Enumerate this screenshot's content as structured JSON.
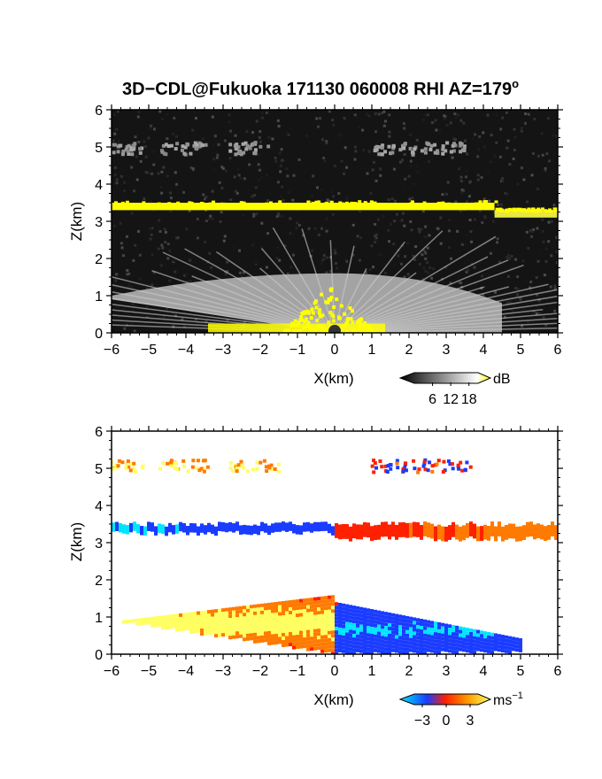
{
  "figure": {
    "title_main": "3D−CDL@Fukuoka 171130 060008 RHI AZ=179",
    "title_degree": "o"
  },
  "colors": {
    "reflectivity_high": "#ffff00",
    "velocity_min": "#00e5ff",
    "velocity_neg": "#1a3cff",
    "velocity_zero": "#ff2000",
    "velocity_pos": "#ffff60",
    "background_top": "#141414"
  },
  "chart_data": [
    {
      "type": "heatmap",
      "quantity": "reflectivity",
      "xlabel": "X(km)",
      "ylabel": "Z(km)",
      "xlim": [
        -6,
        6
      ],
      "ylim": [
        0,
        6
      ],
      "xticks": [
        "−6",
        "−5",
        "−4",
        "−3",
        "−2",
        "−1",
        "0",
        "1",
        "2",
        "3",
        "4",
        "5",
        "6"
      ],
      "yticks": [
        "0",
        "1",
        "2",
        "3",
        "4",
        "5",
        "6"
      ],
      "grid": false,
      "colorbar": {
        "unit": "dB",
        "ticks": [
          "6",
          "12",
          "18"
        ],
        "range": [
          0,
          21
        ]
      },
      "features": [
        {
          "kind": "layer",
          "x": [
            -6,
            4.3
          ],
          "z": [
            3.3,
            3.5
          ],
          "level": 20
        },
        {
          "kind": "layer",
          "x": [
            4.3,
            6
          ],
          "z": [
            3.1,
            3.3
          ],
          "level": 18
        },
        {
          "kind": "patches",
          "z": 5.0,
          "x": [
            -5.8,
            -4.1,
            -2.3,
            1.6,
            2.9
          ],
          "level": 9
        },
        {
          "kind": "fan",
          "origin": [
            0,
            0
          ],
          "x": [
            -6,
            4.5
          ],
          "zmax": 1.6,
          "level": 12
        },
        {
          "kind": "core",
          "x": [
            -1.5,
            1.1
          ],
          "zmax": 1.3,
          "level": 20
        }
      ]
    },
    {
      "type": "heatmap",
      "quantity": "radial velocity",
      "xlabel": "X(km)",
      "ylabel": "Z(km)",
      "xlim": [
        -6,
        6
      ],
      "ylim": [
        0,
        6
      ],
      "xticks": [
        "−6",
        "−5",
        "−4",
        "−3",
        "−2",
        "−1",
        "0",
        "1",
        "2",
        "3",
        "4",
        "5",
        "6"
      ],
      "yticks": [
        "0",
        "1",
        "2",
        "3",
        "4",
        "5",
        "6"
      ],
      "grid": false,
      "colorbar": {
        "unit": "ms",
        "unit_exponent": "−1",
        "ticks": [
          "−3",
          "0",
          "3"
        ],
        "range": [
          -4,
          4
        ]
      },
      "features": [
        {
          "kind": "layer",
          "x": [
            -6,
            0
          ],
          "z": [
            3.25,
            3.5
          ],
          "velocity": -2.5
        },
        {
          "kind": "layer",
          "x": [
            0,
            6
          ],
          "z": [
            3.1,
            3.5
          ],
          "velocity": 2.0
        },
        {
          "kind": "patches",
          "z": 5.1,
          "x": [
            -5.8,
            -4.1,
            -2.2,
            1.6,
            3.0
          ],
          "velocity": 1.5
        },
        {
          "kind": "boundary_layer",
          "x": [
            -6,
            0
          ],
          "zmax": 1.6,
          "velocity": 2.5
        },
        {
          "kind": "boundary_layer",
          "x": [
            0,
            5.0
          ],
          "zmax": 1.4,
          "velocity": -2.8
        }
      ]
    }
  ]
}
